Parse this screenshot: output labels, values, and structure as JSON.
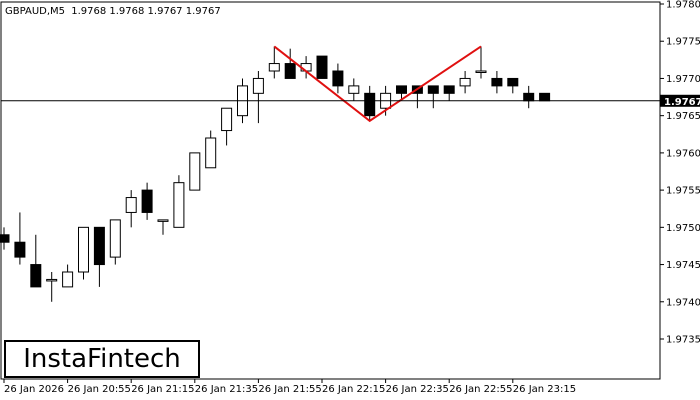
{
  "header": {
    "symbol": "GBPAUD,M5",
    "ohlc": "1.9768 1.9768 1.9767 1.9767"
  },
  "logo": {
    "text": "InstaFintech"
  },
  "chart_data": {
    "type": "candlestick",
    "symbol": "GBPAUD",
    "timeframe": "M5",
    "ylim": [
      1.973,
      1.978
    ],
    "y_ticks": [
      "1.9780",
      "1.9775",
      "1.9770",
      "1.9765",
      "1.9760",
      "1.9755",
      "1.9750",
      "1.9745",
      "1.9740",
      "1.9735"
    ],
    "x_tick_labels": [
      "26 Jan 2026",
      "26 Jan 20:55",
      "26 Jan 21:15",
      "26 Jan 21:35",
      "26 Jan 21:55",
      "26 Jan 22:15",
      "26 Jan 22:35",
      "26 Jan 22:55",
      "26 Jan 23:15"
    ],
    "current_price": "1.9767",
    "pattern": {
      "color": "#e01010",
      "points": [
        {
          "candle": 17,
          "price": 1.97743
        },
        {
          "candle": 23,
          "price": 1.97643
        },
        {
          "candle": 30,
          "price": 1.97743
        }
      ]
    },
    "candles": [
      {
        "o": 1.9749,
        "h": 1.975,
        "l": 1.9747,
        "c": 1.9748
      },
      {
        "o": 1.9748,
        "h": 1.9752,
        "l": 1.9745,
        "c": 1.9746
      },
      {
        "o": 1.9745,
        "h": 1.9749,
        "l": 1.9742,
        "c": 1.9742
      },
      {
        "o": 1.9743,
        "h": 1.9744,
        "l": 1.974,
        "c": 1.9743
      },
      {
        "o": 1.9742,
        "h": 1.9745,
        "l": 1.9742,
        "c": 1.9744
      },
      {
        "o": 1.9744,
        "h": 1.975,
        "l": 1.9743,
        "c": 1.975
      },
      {
        "o": 1.975,
        "h": 1.975,
        "l": 1.9742,
        "c": 1.9745
      },
      {
        "o": 1.9746,
        "h": 1.9751,
        "l": 1.9745,
        "c": 1.9751
      },
      {
        "o": 1.9752,
        "h": 1.9755,
        "l": 1.975,
        "c": 1.9754
      },
      {
        "o": 1.9755,
        "h": 1.9756,
        "l": 1.9751,
        "c": 1.9752
      },
      {
        "o": 1.9751,
        "h": 1.9751,
        "l": 1.9749,
        "c": 1.9751
      },
      {
        "o": 1.975,
        "h": 1.9757,
        "l": 1.975,
        "c": 1.9756
      },
      {
        "o": 1.9755,
        "h": 1.976,
        "l": 1.9755,
        "c": 1.976
      },
      {
        "o": 1.9758,
        "h": 1.9763,
        "l": 1.9758,
        "c": 1.9762
      },
      {
        "o": 1.9763,
        "h": 1.9766,
        "l": 1.9761,
        "c": 1.9766
      },
      {
        "o": 1.9765,
        "h": 1.977,
        "l": 1.9764,
        "c": 1.9769
      },
      {
        "o": 1.9768,
        "h": 1.9771,
        "l": 1.9764,
        "c": 1.977
      },
      {
        "o": 1.9771,
        "h": 1.97743,
        "l": 1.977,
        "c": 1.9772
      },
      {
        "o": 1.9772,
        "h": 1.9774,
        "l": 1.977,
        "c": 1.977
      },
      {
        "o": 1.9771,
        "h": 1.9773,
        "l": 1.977,
        "c": 1.9772
      },
      {
        "o": 1.9773,
        "h": 1.9773,
        "l": 1.977,
        "c": 1.977
      },
      {
        "o": 1.9771,
        "h": 1.9772,
        "l": 1.9768,
        "c": 1.9769
      },
      {
        "o": 1.9768,
        "h": 1.977,
        "l": 1.9767,
        "c": 1.9769
      },
      {
        "o": 1.9768,
        "h": 1.9769,
        "l": 1.97643,
        "c": 1.9765
      },
      {
        "o": 1.9766,
        "h": 1.9769,
        "l": 1.9765,
        "c": 1.9768
      },
      {
        "o": 1.9769,
        "h": 1.9769,
        "l": 1.9767,
        "c": 1.9768
      },
      {
        "o": 1.9769,
        "h": 1.9769,
        "l": 1.9766,
        "c": 1.9768
      },
      {
        "o": 1.9769,
        "h": 1.9769,
        "l": 1.9766,
        "c": 1.9768
      },
      {
        "o": 1.9769,
        "h": 1.9769,
        "l": 1.9767,
        "c": 1.9768
      },
      {
        "o": 1.9769,
        "h": 1.9771,
        "l": 1.9768,
        "c": 1.977
      },
      {
        "o": 1.9771,
        "h": 1.97743,
        "l": 1.977,
        "c": 1.9771
      },
      {
        "o": 1.977,
        "h": 1.9771,
        "l": 1.9768,
        "c": 1.9769
      },
      {
        "o": 1.977,
        "h": 1.977,
        "l": 1.9768,
        "c": 1.9769
      },
      {
        "o": 1.9768,
        "h": 1.9769,
        "l": 1.9766,
        "c": 1.9767
      },
      {
        "o": 1.9768,
        "h": 1.9768,
        "l": 1.9767,
        "c": 1.9767
      }
    ]
  }
}
